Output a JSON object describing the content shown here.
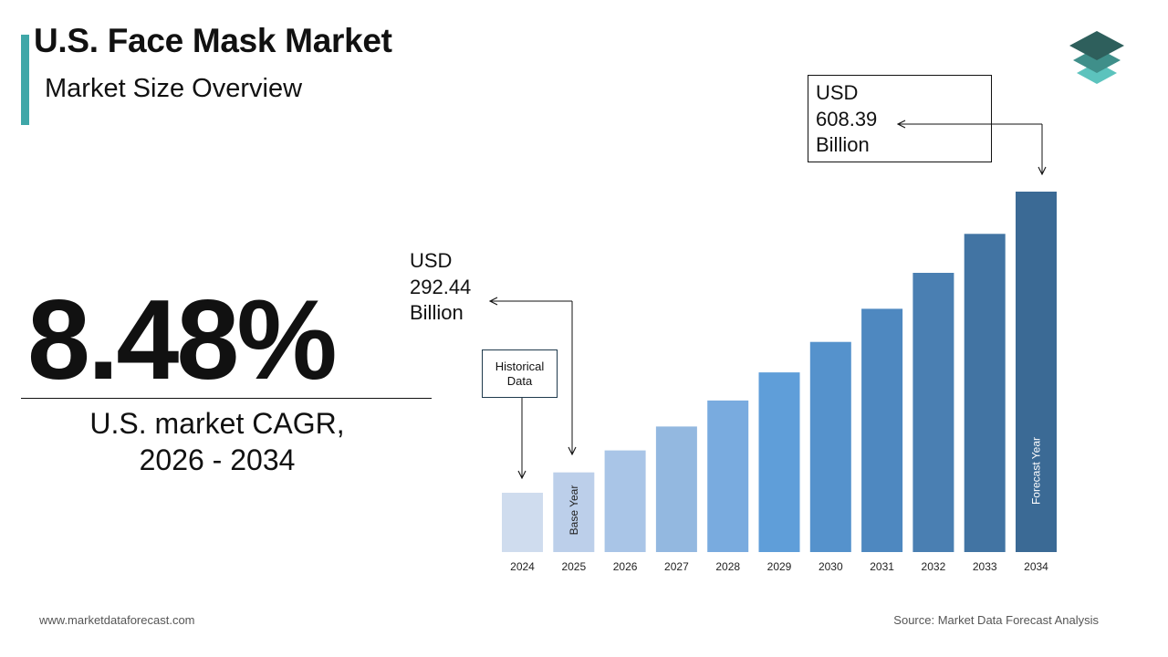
{
  "header": {
    "title": "U.S. Face Mask Market",
    "subtitle": "Market Size Overview"
  },
  "cagr": {
    "value": "8.48%",
    "label_line1": "U.S. market CAGR,",
    "label_line2": "2026 - 2034"
  },
  "callouts": {
    "forecast": {
      "line1": "USD",
      "line2": "608.39",
      "line3": "Billion"
    },
    "base": {
      "line1": "USD",
      "line2": "292.44",
      "line3": "Billion"
    },
    "historical": "Historical Data"
  },
  "footer": {
    "website": "www.marketdataforecast.com",
    "source": "Source: Market Data Forecast Analysis"
  },
  "colors": {
    "accent": "#3fa7a8",
    "logo_dark": "#2e5f5c",
    "logo_mid": "#3f8f8a",
    "logo_light": "#5cc3bd"
  },
  "chart_data": {
    "type": "bar",
    "categories": [
      "2024",
      "2025",
      "2026",
      "2027",
      "2028",
      "2029",
      "2030",
      "2031",
      "2032",
      "2033",
      "2034"
    ],
    "values": [
      269.58,
      292.44,
      317.24,
      344.14,
      373.33,
      404.99,
      439.33,
      476.59,
      517.0,
      560.84,
      608.39
    ],
    "bar_colors": [
      "#cfdcee",
      "#bccfea",
      "#a9c5e7",
      "#93b8e0",
      "#79abdf",
      "#5f9ed9",
      "#5592cc",
      "#4e88c0",
      "#4a7fb2",
      "#4274a3",
      "#3b6a95"
    ],
    "bar_labels": {
      "2025": "Base Year",
      "2034": "Forecast Year"
    },
    "ylim": [
      0,
      608.39
    ],
    "grid": false,
    "legend": "none"
  }
}
